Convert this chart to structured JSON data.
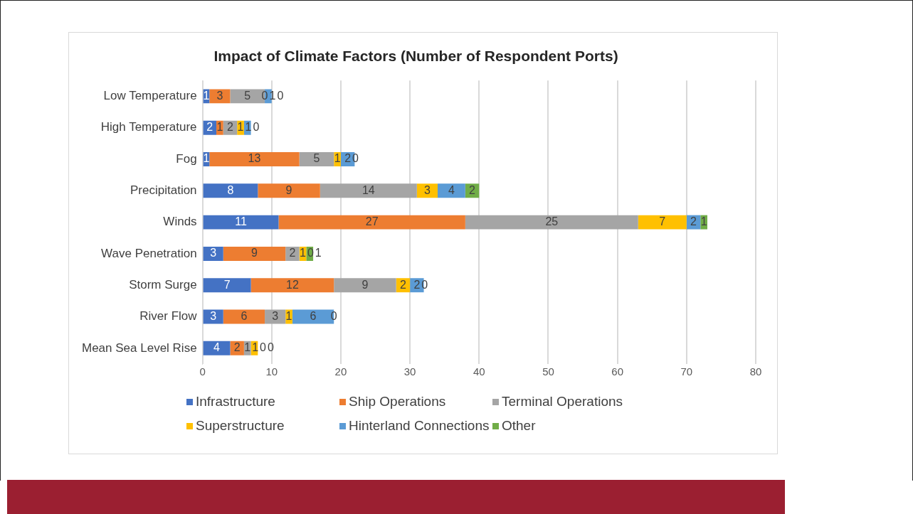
{
  "chart_data": {
    "type": "bar",
    "orientation": "horizontal",
    "stacked": true,
    "title": "Impact of Climate Factors (Number of Respondent Ports)",
    "categories": [
      "Low Temperature",
      "High Temperature",
      "Fog",
      "Precipitation",
      "Winds",
      "Wave Penetration",
      "Storm Surge",
      "River Flow",
      "Mean Sea Level Rise"
    ],
    "series": [
      {
        "name": "Infrastructure",
        "color": "#4472c4",
        "values": [
          1,
          2,
          1,
          8,
          11,
          3,
          7,
          3,
          4
        ]
      },
      {
        "name": "Ship Operations",
        "color": "#ed7d31",
        "values": [
          3,
          1,
          13,
          9,
          27,
          9,
          12,
          6,
          2
        ]
      },
      {
        "name": "Terminal Operations",
        "color": "#a5a5a5",
        "values": [
          5,
          2,
          5,
          14,
          25,
          2,
          9,
          3,
          1
        ]
      },
      {
        "name": "Superstructure",
        "color": "#ffc000",
        "values": [
          0,
          1,
          1,
          3,
          7,
          1,
          2,
          1,
          1
        ]
      },
      {
        "name": "Hinterland Connections",
        "color": "#5b9bd5",
        "values": [
          1,
          1,
          2,
          4,
          2,
          0,
          2,
          6,
          0
        ]
      },
      {
        "name": "Other",
        "color": "#70ad47",
        "values": [
          0,
          0,
          0,
          2,
          1,
          1,
          0,
          0,
          0
        ]
      }
    ],
    "xlim": [
      0,
      80
    ],
    "xticks": [
      0,
      10,
      20,
      30,
      40,
      50,
      60,
      70,
      80
    ],
    "grid": "x",
    "legend": "bottom",
    "data_labels": true
  }
}
